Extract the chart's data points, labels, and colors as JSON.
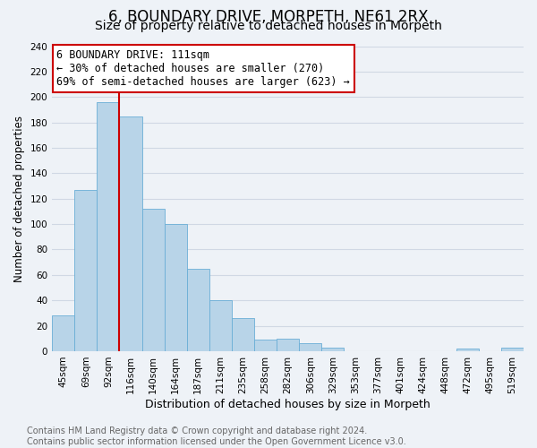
{
  "title": "6, BOUNDARY DRIVE, MORPETH, NE61 2RX",
  "subtitle": "Size of property relative to detached houses in Morpeth",
  "xlabel": "Distribution of detached houses by size in Morpeth",
  "ylabel": "Number of detached properties",
  "categories": [
    "45sqm",
    "69sqm",
    "92sqm",
    "116sqm",
    "140sqm",
    "164sqm",
    "187sqm",
    "211sqm",
    "235sqm",
    "258sqm",
    "282sqm",
    "306sqm",
    "329sqm",
    "353sqm",
    "377sqm",
    "401sqm",
    "424sqm",
    "448sqm",
    "472sqm",
    "495sqm",
    "519sqm"
  ],
  "values": [
    28,
    127,
    196,
    185,
    112,
    100,
    65,
    40,
    26,
    9,
    10,
    6,
    3,
    0,
    0,
    0,
    0,
    0,
    2,
    0,
    3
  ],
  "bar_color": "#b8d4e8",
  "bar_edge_color": "#6aaed6",
  "vline_color": "#cc0000",
  "vline_position": 2.5,
  "annotation_text": "6 BOUNDARY DRIVE: 111sqm\n← 30% of detached houses are smaller (270)\n69% of semi-detached houses are larger (623) →",
  "annotation_box_color": "#ffffff",
  "annotation_box_edge": "#cc0000",
  "ylim": [
    0,
    240
  ],
  "yticks": [
    0,
    20,
    40,
    60,
    80,
    100,
    120,
    140,
    160,
    180,
    200,
    220,
    240
  ],
  "background_color": "#eef2f7",
  "grid_color": "#d0d8e4",
  "footer_text": "Contains HM Land Registry data © Crown copyright and database right 2024.\nContains public sector information licensed under the Open Government Licence v3.0.",
  "title_fontsize": 12,
  "subtitle_fontsize": 10,
  "xlabel_fontsize": 9,
  "ylabel_fontsize": 8.5,
  "tick_fontsize": 7.5,
  "annotation_fontsize": 8.5,
  "footer_fontsize": 7
}
